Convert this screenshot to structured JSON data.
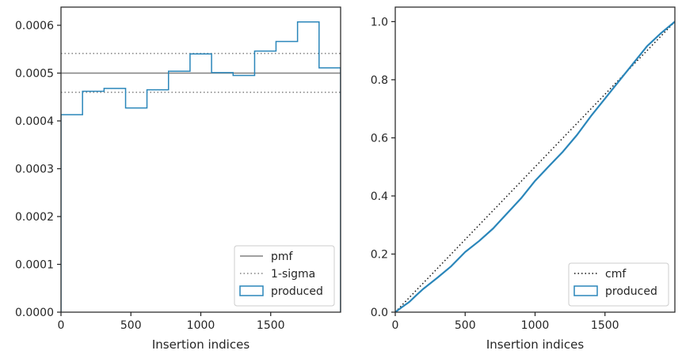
{
  "chart_data": [
    {
      "type": "histogram",
      "xlabel": "Insertion indices",
      "ylabel": "",
      "xlim": [
        0,
        2000
      ],
      "ylim": [
        0,
        0.000638
      ],
      "x_ticks": [
        0,
        500,
        1000,
        1500
      ],
      "x_tick_labels": [
        "0",
        "500",
        "1000",
        "1500"
      ],
      "y_ticks": [
        0,
        0.0001,
        0.0002,
        0.0003,
        0.0004,
        0.0005,
        0.0006
      ],
      "y_tick_labels": [
        "0.0000",
        "0.0001",
        "0.0002",
        "0.0003",
        "0.0004",
        "0.0005",
        "0.0006"
      ],
      "grid": false,
      "legend_position": "lower right",
      "legend": [
        {
          "label": "pmf",
          "style": "solid",
          "color": "#808080"
        },
        {
          "label": "1-sigma",
          "style": "dotted",
          "color": "#808080"
        },
        {
          "label": "produced",
          "style": "step",
          "color": "#2a86ba"
        }
      ],
      "bin_edges": [
        0,
        154,
        308,
        462,
        615,
        769,
        923,
        1077,
        1231,
        1385,
        1538,
        1692,
        1846,
        2000
      ],
      "values": [
        0.000413,
        0.000462,
        0.000468,
        0.000427,
        0.000465,
        0.000504,
        0.00054,
        0.000501,
        0.000495,
        0.000546,
        0.000566,
        0.000607,
        0.000511
      ],
      "pmf": 0.0005,
      "sigma_band": [
        0.00046,
        0.000541
      ]
    },
    {
      "type": "line",
      "xlabel": "Insertion indices",
      "ylabel": "",
      "xlim": [
        0,
        2000
      ],
      "ylim": [
        0,
        1.05
      ],
      "x_ticks": [
        0,
        500,
        1000,
        1500
      ],
      "x_tick_labels": [
        "0",
        "500",
        "1000",
        "1500"
      ],
      "y_ticks": [
        0,
        0.2,
        0.4,
        0.6,
        0.8,
        1.0
      ],
      "y_tick_labels": [
        "0.0",
        "0.2",
        "0.4",
        "0.6",
        "0.8",
        "1.0"
      ],
      "grid": false,
      "legend_position": "lower right",
      "legend": [
        {
          "label": "cmf",
          "style": "dotted",
          "color": "#111111"
        },
        {
          "label": "produced",
          "style": "step",
          "color": "#2a86ba"
        }
      ],
      "series": [
        {
          "name": "cmf",
          "x": [
            0,
            2000
          ],
          "y": [
            0,
            1.0
          ]
        },
        {
          "name": "produced",
          "x": [
            0,
            50,
            100,
            150,
            200,
            300,
            400,
            500,
            600,
            700,
            800,
            900,
            1000,
            1100,
            1200,
            1300,
            1400,
            1500,
            1600,
            1700,
            1800,
            1900,
            2000
          ],
          "y": [
            0,
            0.018,
            0.035,
            0.058,
            0.08,
            0.118,
            0.158,
            0.207,
            0.245,
            0.288,
            0.34,
            0.392,
            0.452,
            0.503,
            0.553,
            0.61,
            0.675,
            0.735,
            0.795,
            0.855,
            0.915,
            0.96,
            1.0
          ]
        }
      ]
    }
  ]
}
